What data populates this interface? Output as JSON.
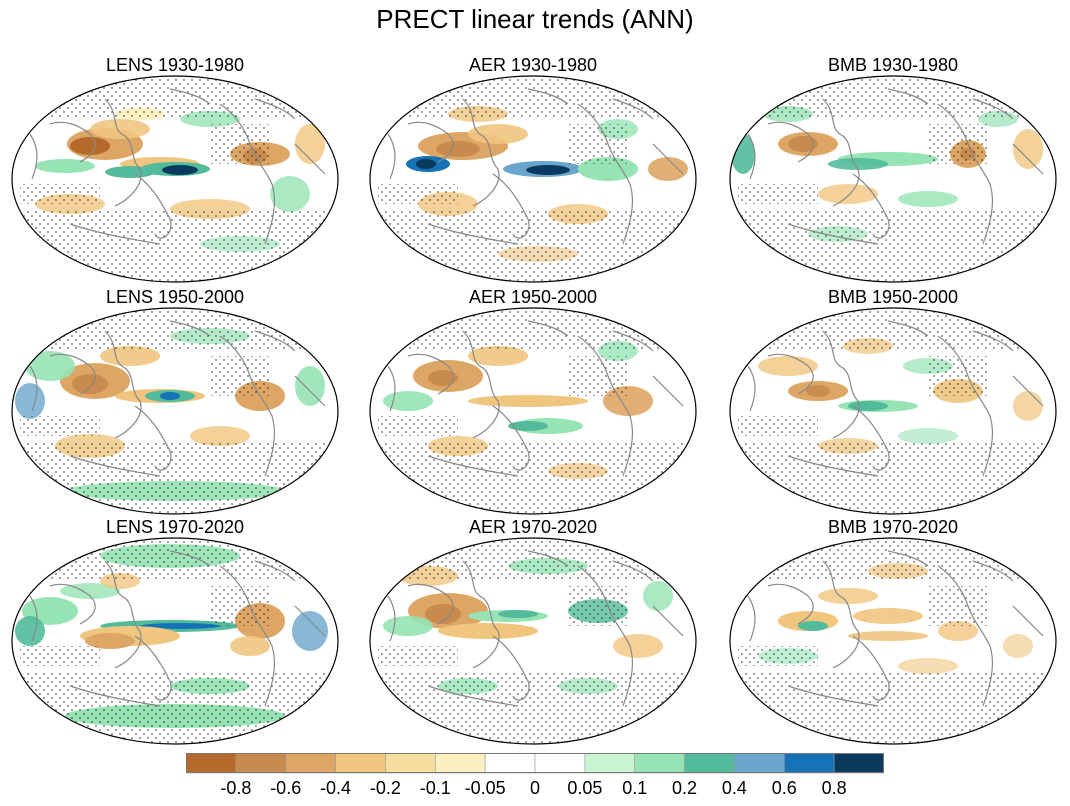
{
  "title": "PRECT linear trends (ANN)",
  "panels": [
    {
      "title": "LENS 1930-1980"
    },
    {
      "title": "AER 1930-1980"
    },
    {
      "title": "BMB 1930-1980"
    },
    {
      "title": "LENS 1950-2000"
    },
    {
      "title": "AER 1950-2000"
    },
    {
      "title": "BMB 1950-2000"
    },
    {
      "title": "LENS 1970-2020"
    },
    {
      "title": "AER 1970-2020"
    },
    {
      "title": "BMB 1970-2020"
    }
  ],
  "colorbar": {
    "labels": [
      "-0.8",
      "-0.6",
      "-0.4",
      "-0.2",
      "-0.1",
      "-0.05",
      "0",
      "0.05",
      "0.1",
      "0.2",
      "0.4",
      "0.6",
      "0.8"
    ],
    "colors": [
      "#b5692a",
      "#c98a4d",
      "#dea665",
      "#f0c57e",
      "#f5dd9d",
      "#fbf0bf",
      "#ffffff",
      "#ffffff",
      "#c7f4d1",
      "#96e3b4",
      "#52bb9b",
      "#6aa6cc",
      "#1472b5",
      "#0a3a5e"
    ]
  },
  "palette": {
    "brown_strong": "#b5692a",
    "brown": "#c98a4d",
    "tan": "#dea665",
    "light_tan": "#f0c57e",
    "cream": "#fbf0bf",
    "mint": "#c7f4d1",
    "green": "#96e3b4",
    "teal": "#52bb9b",
    "light_blue": "#6aa6cc",
    "blue": "#1472b5",
    "navy": "#0a3a5e",
    "coast": "#888888",
    "stipple": "#222222"
  }
}
